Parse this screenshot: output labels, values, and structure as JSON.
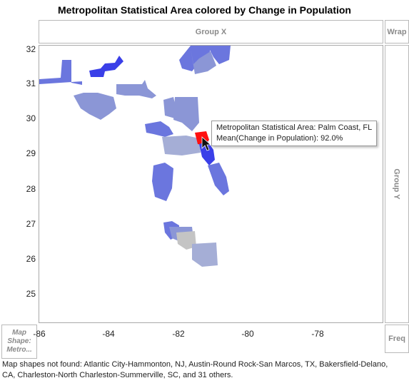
{
  "title": "Metropolitan Statistical Area colored by Change in Population",
  "zones": {
    "group_x": "Group X",
    "wrap": "Wrap",
    "group_y": "Group Y",
    "freq": "Freq",
    "map_shape_line1": "Map",
    "map_shape_line2": "Shape:",
    "map_shape_line3": "Metro..."
  },
  "axes": {
    "y_ticks": [
      "32",
      "31",
      "30",
      "29",
      "28",
      "27",
      "26",
      "25"
    ],
    "x_ticks": [
      "-86",
      "-84",
      "-82",
      "-80",
      "-78"
    ]
  },
  "tooltip": {
    "line1": "Metropolitan Statistical Area: Palm Coast, FL",
    "line2": "Mean(Change in Population): 92.0%"
  },
  "footnote": {
    "line1": "Map shapes not found: Atlantic City-Hammonton, NJ, Austin-Round Rock-San Marcos, TX, Bakersfield-Delano,",
    "line2": "CA, Charleston-North Charleston-Summerville, SC, and 31 others."
  },
  "colors": {
    "strong_blue": "#3a3fe8",
    "medium_blue": "#6b76de",
    "light_blue": "#8b96d6",
    "pale_blue": "#a5aed6",
    "gray": "#c4c4c4",
    "highlight_red": "#ff1010"
  },
  "icons": {
    "cursor": "arrow-pointer-icon"
  }
}
